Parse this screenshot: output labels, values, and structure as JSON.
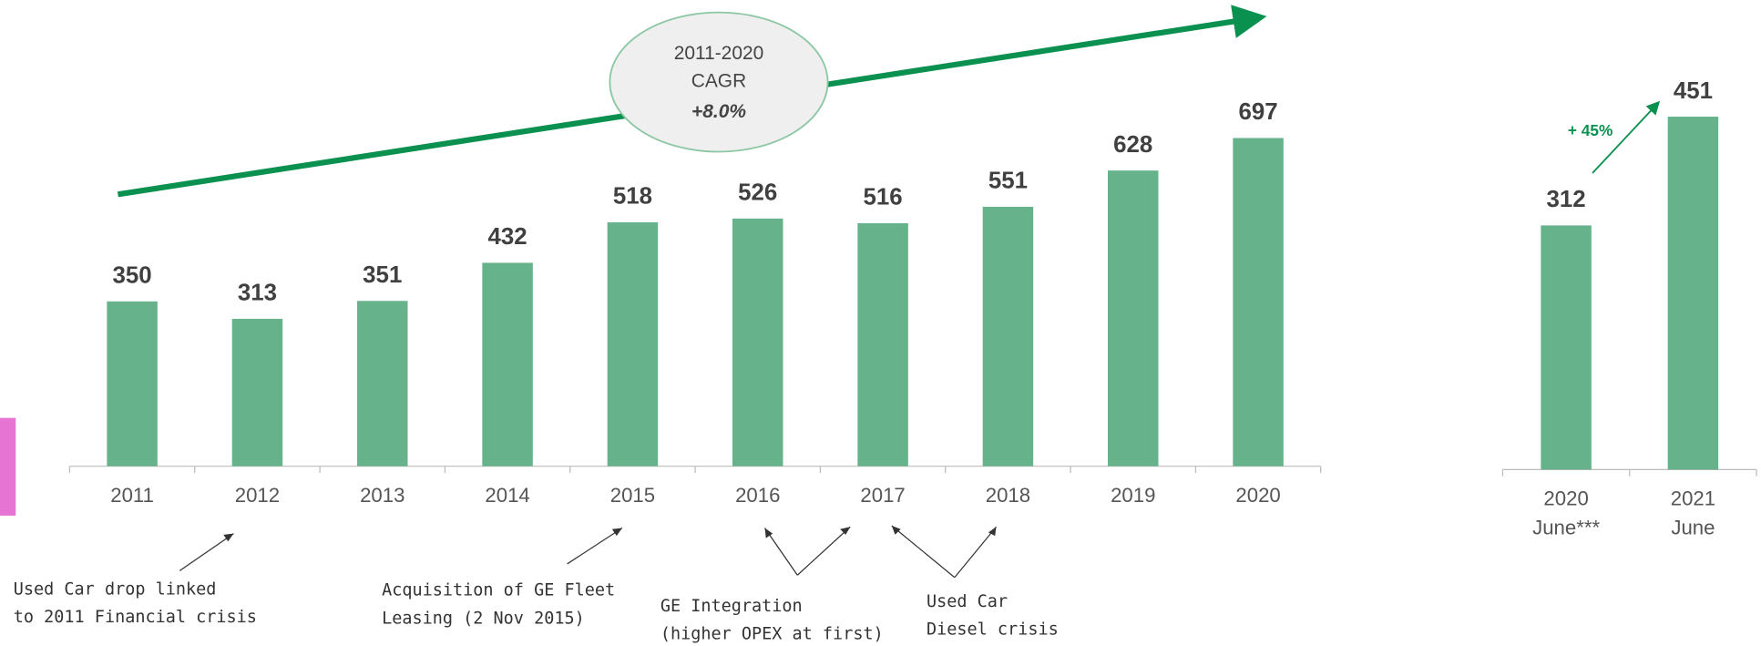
{
  "chart_data": [
    {
      "type": "bar",
      "categories": [
        "2011",
        "2012",
        "2013",
        "2014",
        "2015",
        "2016",
        "2017",
        "2018",
        "2019",
        "2020"
      ],
      "values": [
        350,
        313,
        351,
        432,
        518,
        526,
        516,
        551,
        628,
        697
      ],
      "color": "#66b28a",
      "ylim": [
        0,
        990
      ],
      "annotation": [
        "2011-2020",
        "CAGR",
        "+8.0%"
      ]
    },
    {
      "type": "bar",
      "categories": [
        [
          "2020",
          "June***"
        ],
        [
          "2021",
          "June"
        ]
      ],
      "values": [
        312,
        451
      ],
      "color": "#66b28a",
      "ylim": [
        0,
        600
      ],
      "annotation": "+ 45%"
    }
  ],
  "notes": [
    [
      "Used Car drop linked",
      "to 2011 Financial crisis"
    ],
    [
      "Acquisition of GE Fleet",
      "Leasing (2 Nov 2015)"
    ],
    [
      "GE Integration",
      "(higher OPEX at first)"
    ],
    [
      "Used Car",
      "Diesel crisis"
    ]
  ]
}
